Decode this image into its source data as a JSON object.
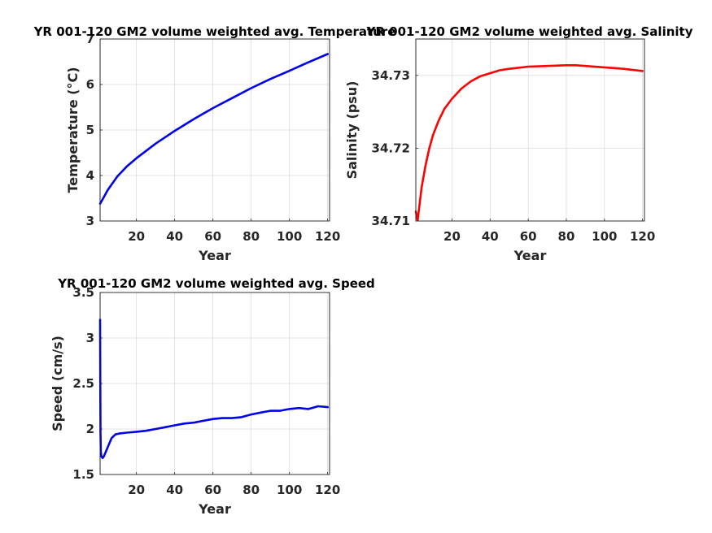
{
  "chart_data": [
    {
      "type": "line",
      "title": "YR 001-120 GM2 volume weighted avg. Temperature",
      "xlabel": "Year",
      "ylabel": "Temperature (°C)",
      "xlim": [
        1,
        121
      ],
      "ylim": [
        3,
        7
      ],
      "xticks": [
        20,
        40,
        60,
        80,
        100,
        120
      ],
      "yticks": [
        3,
        4,
        5,
        6,
        7
      ],
      "grid": true,
      "series": [
        {
          "color": "#0000ee",
          "x": [
            1,
            2,
            5,
            10,
            15,
            20,
            30,
            40,
            50,
            60,
            70,
            80,
            90,
            100,
            110,
            120
          ],
          "y": [
            3.38,
            3.45,
            3.68,
            3.98,
            4.2,
            4.38,
            4.7,
            4.98,
            5.24,
            5.48,
            5.7,
            5.92,
            6.12,
            6.3,
            6.49,
            6.67
          ]
        }
      ]
    },
    {
      "type": "line",
      "title": "YR 001-120 GM2 volume weighted avg. Salinity",
      "xlabel": "Year",
      "ylabel": "Salinity (psu)",
      "xlim": [
        1,
        121
      ],
      "ylim": [
        34.71,
        34.735
      ],
      "xticks": [
        20,
        40,
        60,
        80,
        100,
        120
      ],
      "yticks": [
        34.71,
        34.72,
        34.73
      ],
      "grid": true,
      "series": [
        {
          "color": "#ff0000",
          "x": [
            1,
            2,
            4,
            6,
            8,
            10,
            13,
            16,
            20,
            25,
            30,
            35,
            40,
            45,
            50,
            60,
            70,
            80,
            85,
            90,
            100,
            110,
            120
          ],
          "y": [
            34.7113,
            34.7101,
            34.7145,
            34.7175,
            34.7199,
            34.7218,
            34.7238,
            34.7254,
            34.7268,
            34.7282,
            34.7292,
            34.7299,
            34.7303,
            34.7307,
            34.7309,
            34.7312,
            34.7313,
            34.7314,
            34.7314,
            34.7313,
            34.7311,
            34.7309,
            34.7306
          ]
        }
      ]
    },
    {
      "type": "line",
      "title": "YR 001-120 GM2 volume weighted avg. Speed",
      "xlabel": "Year",
      "ylabel": "Speed (cm/s)",
      "xlim": [
        1,
        121
      ],
      "ylim": [
        1.5,
        3.5
      ],
      "xticks": [
        20,
        40,
        60,
        80,
        100,
        120
      ],
      "yticks": [
        1.5,
        2,
        2.5,
        3,
        3.5
      ],
      "grid": true,
      "series": [
        {
          "color": "#0000ee",
          "x": [
            1,
            1.1,
            1.2,
            1.4,
            1.7,
            2.3,
            3,
            5,
            7,
            9,
            11,
            15,
            20,
            25,
            30,
            35,
            40,
            45,
            50,
            55,
            60,
            65,
            70,
            75,
            80,
            85,
            90,
            95,
            100,
            105,
            110,
            115,
            120
          ],
          "y": [
            3.2,
            2.6,
            1.95,
            1.75,
            1.7,
            1.68,
            1.7,
            1.8,
            1.9,
            1.94,
            1.95,
            1.96,
            1.97,
            1.98,
            2.0,
            2.02,
            2.04,
            2.06,
            2.07,
            2.09,
            2.11,
            2.12,
            2.12,
            2.13,
            2.16,
            2.18,
            2.2,
            2.2,
            2.22,
            2.23,
            2.22,
            2.25,
            2.24
          ]
        }
      ]
    }
  ]
}
